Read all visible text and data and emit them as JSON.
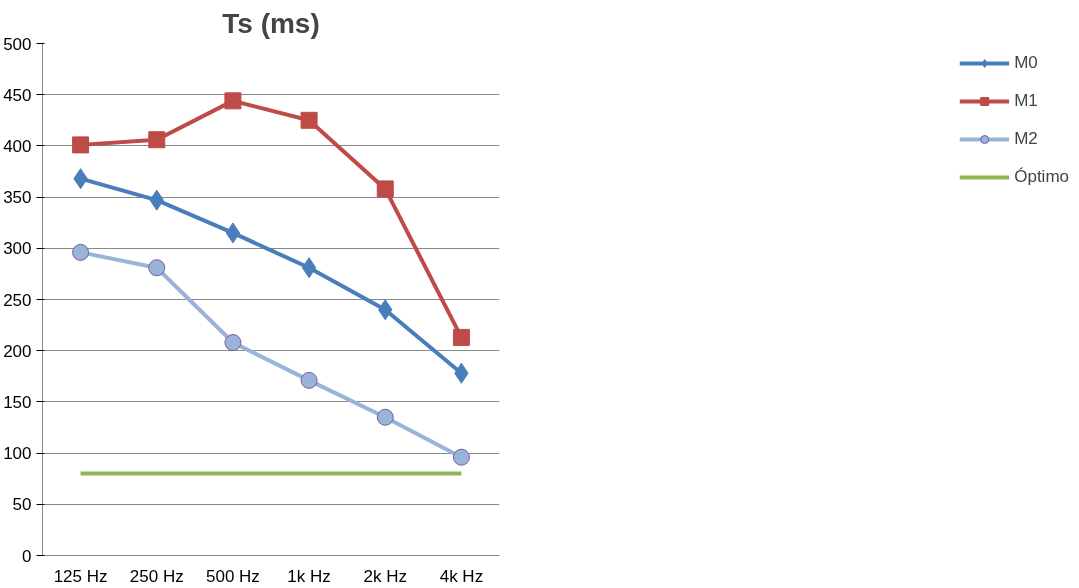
{
  "chart_data": {
    "type": "line",
    "title": "Ts (ms)",
    "categories": [
      "125 Hz",
      "250 Hz",
      "500 Hz",
      "1k Hz",
      "2k Hz",
      "4k Hz"
    ],
    "series": [
      {
        "name": "M0",
        "color": "#4a7ebb",
        "marker": "diamond",
        "values": [
          368,
          347,
          315,
          281,
          240,
          178
        ]
      },
      {
        "name": "M1",
        "color": "#be4b48",
        "marker": "square",
        "values": [
          401,
          406,
          444,
          425,
          358,
          213
        ]
      },
      {
        "name": "M2",
        "color": "#98b4d9",
        "marker": "circle",
        "values": [
          296,
          281,
          208,
          171,
          135,
          96
        ]
      },
      {
        "name": "Óptimo",
        "color": "#8db553",
        "marker": "none",
        "values": [
          80,
          80,
          80,
          80,
          80,
          80
        ]
      }
    ],
    "ylim": [
      0,
      500
    ],
    "yticks": [
      0,
      50,
      100,
      150,
      200,
      250,
      300,
      350,
      400,
      450,
      500
    ],
    "grid": "y",
    "legend": "right"
  }
}
